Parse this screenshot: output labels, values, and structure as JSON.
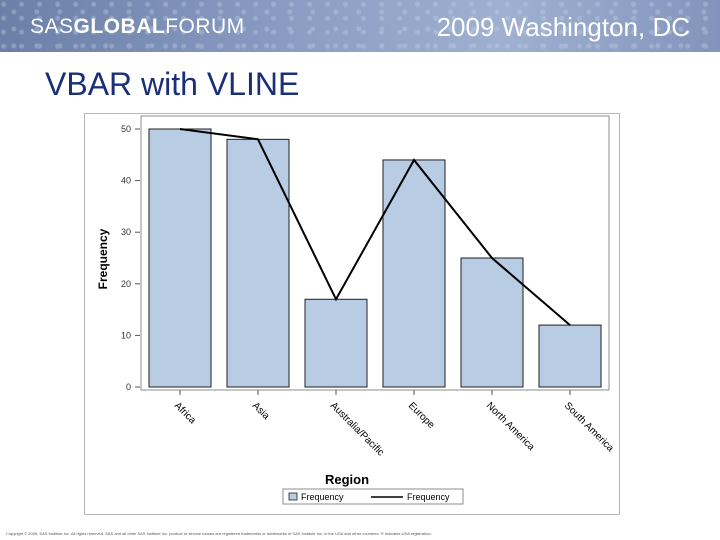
{
  "header": {
    "brand_left": "SAS",
    "brand_strong": "GLOBAL",
    "brand_right": "FORUM",
    "event": "2009 Washington, DC"
  },
  "slide": {
    "title": "VBAR with VLINE"
  },
  "colors": {
    "bar_fill": "#b8cce4",
    "bar_stroke": "#1f1f1f",
    "line": "#000000",
    "title": "#1a2f7a"
  },
  "chart_data": {
    "type": "bar",
    "categories": [
      "Africa",
      "Asia",
      "Australia/Pacific",
      "Europe",
      "North America",
      "South America"
    ],
    "series": [
      {
        "name": "Frequency",
        "type": "bar",
        "values": [
          50,
          48,
          17,
          44,
          25,
          12
        ]
      },
      {
        "name": "Frequency",
        "type": "line",
        "values": [
          50,
          48,
          17,
          44,
          25,
          12
        ]
      }
    ],
    "xlabel": "Region",
    "ylabel": "Frequency",
    "ylim": [
      0,
      50
    ],
    "yticks": [
      0,
      10,
      20,
      30,
      40,
      50
    ],
    "legend": {
      "position": "bottom",
      "bar_label": "Frequency",
      "line_label": "Frequency"
    }
  },
  "footer": {
    "copyright": "Copyright © 2009, SAS Institute Inc. All rights reserved. SAS and all other SAS Institute Inc. product or service names are registered trademarks or trademarks of SAS Institute Inc. in the USA and other countries. ® indicates USA registration."
  }
}
